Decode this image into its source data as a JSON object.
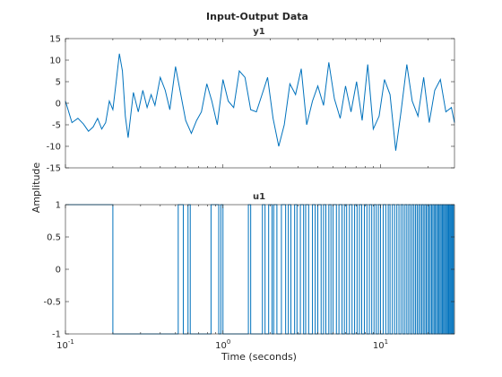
{
  "figure": {
    "title": "Input-Output Data",
    "xlabel": "Time (seconds)",
    "ylabel": "Amplitude"
  },
  "colors": {
    "series": "#0072bd",
    "axes": "#262626",
    "background": "#ffffff"
  },
  "chart_data": [
    {
      "type": "line",
      "title": "y1",
      "xscale": "log",
      "xlim": [
        0.1,
        29.5
      ],
      "ylim": [
        -15,
        15
      ],
      "yticks": [
        "-15",
        "-10",
        "-5",
        "0",
        "5",
        "10",
        "15"
      ],
      "grid": false,
      "series": [
        {
          "x": [
            0.1,
            0.11,
            0.12,
            0.13,
            0.14,
            0.15,
            0.16,
            0.17,
            0.18,
            0.19,
            0.2,
            0.21,
            0.22,
            0.23,
            0.24,
            0.25,
            0.27,
            0.29,
            0.31,
            0.33,
            0.35,
            0.37,
            0.4,
            0.43,
            0.46,
            0.5,
            0.54,
            0.58,
            0.63,
            0.68,
            0.73,
            0.79,
            0.85,
            0.92,
            1.0,
            1.08,
            1.17,
            1.27,
            1.38,
            1.5,
            1.63,
            1.77,
            1.92,
            2.08,
            2.26,
            2.45,
            2.66,
            2.89,
            3.14,
            3.4,
            3.7,
            4.0,
            4.35,
            4.7,
            5.1,
            5.55,
            6.0,
            6.5,
            7.05,
            7.65,
            8.3,
            9.0,
            9.8,
            10.6,
            11.5,
            12.5,
            13.5,
            14.7,
            15.9,
            17.3,
            18.8,
            20.4,
            22.1,
            24.0,
            26.0,
            28.2,
            29.5
          ],
          "y": [
            0.5,
            -4.5,
            -3.5,
            -4.8,
            -6.5,
            -5.5,
            -3.5,
            -6.0,
            -4.5,
            0.5,
            -1.5,
            5.0,
            11.5,
            7.5,
            -3.0,
            -8.0,
            2.5,
            -2.0,
            3.0,
            -1.0,
            2.0,
            -0.5,
            6.0,
            3.0,
            -1.5,
            8.5,
            2.0,
            -4.0,
            -7.0,
            -4.0,
            -2.0,
            4.5,
            0.5,
            -5.0,
            5.5,
            0.5,
            -1.0,
            7.5,
            6.0,
            -1.5,
            -2.0,
            2.0,
            6.0,
            -3.5,
            -10.0,
            -5.0,
            4.5,
            2.0,
            8.0,
            -5.0,
            0.5,
            4.0,
            -0.5,
            9.5,
            1.0,
            -3.5,
            4.0,
            -2.0,
            5.0,
            -4.0,
            9.0,
            -6.0,
            -3.0,
            5.5,
            2.0,
            -11.0,
            -2.0,
            9.0,
            0.5,
            -3.0,
            6.0,
            -4.5,
            3.0,
            5.5,
            -2.0,
            -1.0,
            -4.5
          ]
        }
      ]
    },
    {
      "type": "line",
      "title": "u1",
      "xscale": "log",
      "xlim": [
        0.1,
        29.5
      ],
      "ylim": [
        -1,
        1
      ],
      "yticks": [
        "-1",
        "-0.5",
        "0",
        "0.5",
        "1"
      ],
      "xticks": [
        {
          "value": 0.1,
          "base": "10",
          "exp": "-1"
        },
        {
          "value": 1,
          "base": "10",
          "exp": "0"
        },
        {
          "value": 10,
          "base": "10",
          "exp": "1"
        }
      ],
      "grid": false,
      "series": [
        {
          "style": "step",
          "switch_times": [
            0.2,
            0.52,
            0.56,
            0.6,
            0.62,
            0.84,
            0.94,
            0.97,
            1.0,
            1.45,
            1.5,
            1.78,
            1.85,
            1.95,
            2.05,
            2.1,
            2.2,
            2.35,
            2.5,
            2.6,
            2.7,
            2.85,
            2.95,
            3.1,
            3.25,
            3.35,
            3.5,
            3.7,
            3.85,
            4.0,
            4.2,
            4.35,
            4.5,
            4.7,
            4.85,
            5.0,
            5.25,
            5.45,
            5.7,
            5.9,
            6.1,
            6.35,
            6.6,
            6.85,
            7.1,
            7.35,
            7.6,
            7.9,
            8.2,
            8.5,
            8.8,
            9.1,
            9.4,
            9.7,
            10.0,
            10.4,
            10.8,
            11.2,
            11.5,
            11.9,
            12.3,
            12.7,
            13.1,
            13.5,
            13.9,
            14.3,
            14.7,
            15.1,
            15.5,
            15.9,
            16.3,
            16.7,
            17.1,
            17.5,
            17.9,
            18.3,
            18.7,
            19.1,
            19.5,
            19.9,
            20.3,
            20.7,
            21.1,
            21.5,
            21.9,
            22.3,
            22.7,
            23.1,
            23.5,
            23.9,
            24.3,
            24.7,
            25.1,
            25.5,
            25.9,
            26.3,
            26.7,
            27.1,
            27.5,
            27.9,
            28.3,
            28.7,
            29.1
          ],
          "start_value": 1,
          "levels": [
            -1,
            1
          ]
        }
      ]
    }
  ]
}
